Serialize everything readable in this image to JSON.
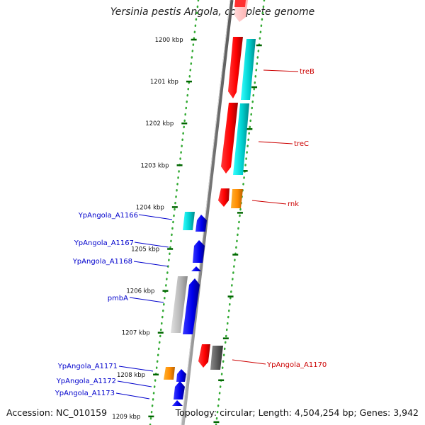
{
  "title": "Yersinia pestis Angola, complete genome",
  "accession": "Accession: NC_010159",
  "topology": "Topology: circular; Length: 4,504,254 bp; Genes: 3,942",
  "colors": {
    "forward_label": "#cc0000",
    "reverse_label": "#0000cc",
    "ruler_tick": "#006600",
    "backbone": "#808080"
  },
  "ruler": [
    {
      "label": "1200 kbp",
      "kbp": 1200
    },
    {
      "label": "1201 kbp",
      "kbp": 1201
    },
    {
      "label": "1202 kbp",
      "kbp": 1202
    },
    {
      "label": "1203 kbp",
      "kbp": 1203
    },
    {
      "label": "1204 kbp",
      "kbp": 1204
    },
    {
      "label": "1205 kbp",
      "kbp": 1205
    },
    {
      "label": "1206 kbp",
      "kbp": 1206
    },
    {
      "label": "1207 kbp",
      "kbp": 1207
    },
    {
      "label": "1208 kbp",
      "kbp": 1208
    },
    {
      "label": "1209 kbp",
      "kbp": 1209
    }
  ],
  "gene_labels": [
    {
      "name": "treB",
      "strand": "forward"
    },
    {
      "name": "treC",
      "strand": "forward"
    },
    {
      "name": "rnk",
      "strand": "forward"
    },
    {
      "name": "YpAngola_A1170",
      "strand": "forward"
    },
    {
      "name": "YpAngola_A1166",
      "strand": "reverse"
    },
    {
      "name": "YpAngola_A1167",
      "strand": "reverse"
    },
    {
      "name": "YpAngola_A1168",
      "strand": "reverse"
    },
    {
      "name": "pmbA",
      "strand": "reverse"
    },
    {
      "name": "YpAngola_A1171",
      "strand": "reverse"
    },
    {
      "name": "YpAngola_A1172",
      "strand": "reverse"
    },
    {
      "name": "YpAngola_A1173",
      "strand": "reverse"
    }
  ]
}
